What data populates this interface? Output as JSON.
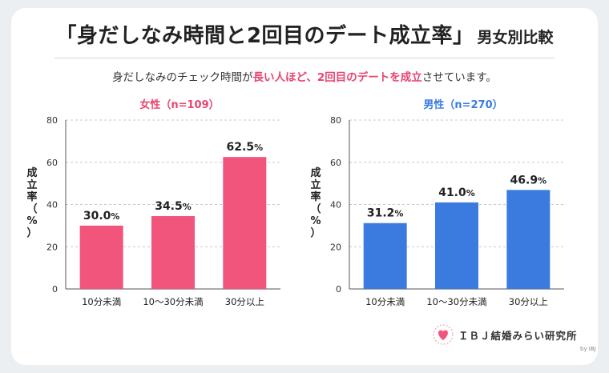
{
  "header": {
    "title": "「身だしなみ時間と2回目のデート成立率」",
    "title_suffix": "男女別比較",
    "subtitle_pre": "身だしなみのチェック時間が",
    "subtitle_highlight1": "長い人ほど",
    "subtitle_mid": "、",
    "subtitle_highlight2": "2回目のデートを成立",
    "subtitle_post": "させています。"
  },
  "chart_data": [
    {
      "type": "bar",
      "title": "女性（n=109）",
      "ylabel": "成立率（%）",
      "categories": [
        "10分未満",
        "10〜30分未満",
        "30分以上"
      ],
      "values": [
        30.0,
        34.5,
        62.5
      ],
      "labels": [
        "30.0%",
        "34.5%",
        "62.5%"
      ],
      "ylim": [
        0,
        80
      ],
      "yticks": [
        0,
        20,
        40,
        60,
        80
      ],
      "color": "#f2557c",
      "title_color": "#e8446e",
      "grid": true
    },
    {
      "type": "bar",
      "title": "男性（n=270）",
      "ylabel": "成立率（%）",
      "categories": [
        "10分未満",
        "10〜30分未満",
        "30分以上"
      ],
      "values": [
        31.2,
        41.0,
        46.9
      ],
      "labels": [
        "31.2%",
        "41.0%",
        "46.9%"
      ],
      "ylim": [
        0,
        80
      ],
      "yticks": [
        0,
        20,
        40,
        60,
        80
      ],
      "color": "#3b7be0",
      "title_color": "#3b7be0",
      "grid": true
    }
  ],
  "logo": {
    "text": "ＩＢＪ結婚みらい研究所",
    "by": "by IBJ",
    "icon": "heart-icon"
  }
}
